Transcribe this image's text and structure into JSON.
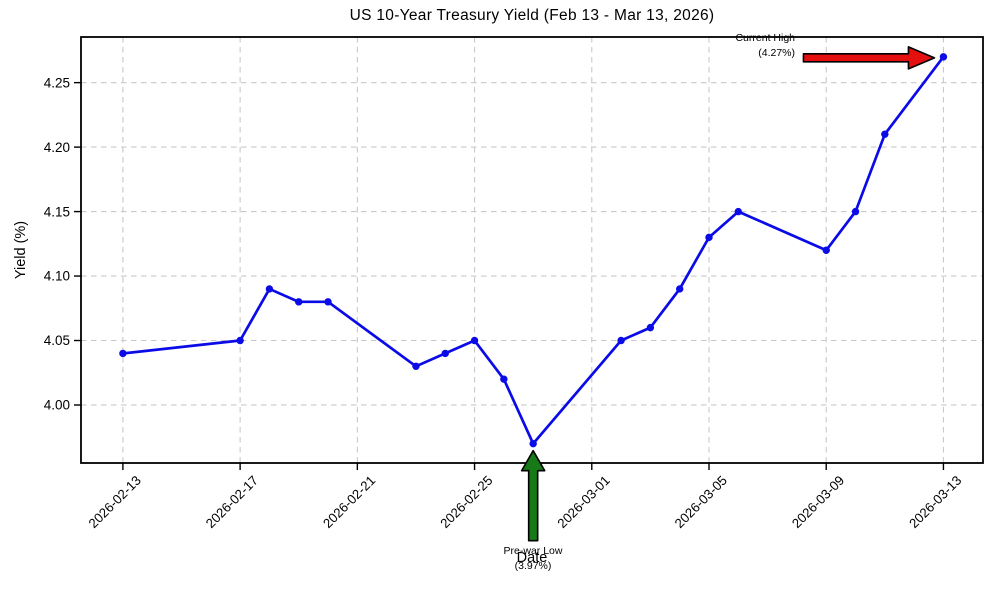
{
  "colors": {
    "line": "#0b0be8",
    "marker": "#0b0be8",
    "grid": "#c9c9c9",
    "spine": "#000000",
    "background": "#ffffff",
    "red_arrow": "#e41010",
    "green_arrow": "#177a17",
    "text": "#000000"
  },
  "chart_data": {
    "type": "line",
    "title": "US 10-Year Treasury Yield (Feb 13 - Mar 13, 2026)",
    "xlabel": "Date",
    "ylabel": "Yield (%)",
    "grid": "on",
    "legend": "none",
    "xlim_days": [
      -1.43,
      29.35
    ],
    "ylim": [
      3.955,
      4.2854
    ],
    "series": [
      {
        "name": "US 10-Year Treasury Yield",
        "color": "#0b0be8",
        "points": [
          {
            "date": "2026-02-13",
            "day": 0,
            "value": 4.04
          },
          {
            "date": "2026-02-17",
            "day": 4,
            "value": 4.05
          },
          {
            "date": "2026-02-18",
            "day": 5,
            "value": 4.09
          },
          {
            "date": "2026-02-19",
            "day": 6,
            "value": 4.08
          },
          {
            "date": "2026-02-20",
            "day": 7,
            "value": 4.08
          },
          {
            "date": "2026-02-23",
            "day": 10,
            "value": 4.03
          },
          {
            "date": "2026-02-24",
            "day": 11,
            "value": 4.04
          },
          {
            "date": "2026-02-25",
            "day": 12,
            "value": 4.05
          },
          {
            "date": "2026-02-26",
            "day": 13,
            "value": 4.02
          },
          {
            "date": "2026-02-27",
            "day": 14,
            "value": 3.97
          },
          {
            "date": "2026-03-02",
            "day": 17,
            "value": 4.05
          },
          {
            "date": "2026-03-03",
            "day": 18,
            "value": 4.06
          },
          {
            "date": "2026-03-04",
            "day": 19,
            "value": 4.09
          },
          {
            "date": "2026-03-05",
            "day": 20,
            "value": 4.13
          },
          {
            "date": "2026-03-06",
            "day": 21,
            "value": 4.15
          },
          {
            "date": "2026-03-09",
            "day": 24,
            "value": 4.12
          },
          {
            "date": "2026-03-10",
            "day": 25,
            "value": 4.15
          },
          {
            "date": "2026-03-11",
            "day": 26,
            "value": 4.21
          },
          {
            "date": "2026-03-13",
            "day": 28,
            "value": 4.27
          }
        ]
      }
    ],
    "xticks": [
      {
        "label": "2026-02-13",
        "day": 0
      },
      {
        "label": "2026-02-17",
        "day": 4
      },
      {
        "label": "2026-02-21",
        "day": 8
      },
      {
        "label": "2026-02-25",
        "day": 12
      },
      {
        "label": "2026-03-01",
        "day": 16
      },
      {
        "label": "2026-03-05",
        "day": 20
      },
      {
        "label": "2026-03-09",
        "day": 24
      },
      {
        "label": "2026-03-13",
        "day": 28
      }
    ],
    "yticks": [
      {
        "label": "4.00",
        "value": 4.0
      },
      {
        "label": "4.05",
        "value": 4.05
      },
      {
        "label": "4.10",
        "value": 4.1
      },
      {
        "label": "4.15",
        "value": 4.15
      },
      {
        "label": "4.20",
        "value": 4.2
      },
      {
        "label": "4.25",
        "value": 4.25
      }
    ],
    "annotations": [
      {
        "id": "current-high",
        "lines": [
          "Current High",
          "(4.27%)"
        ],
        "target_date": "2026-03-13",
        "target_day": 28,
        "target_value": 4.27,
        "arrow_direction": "right",
        "arrow_color": "#e41010"
      },
      {
        "id": "pre-war-low",
        "lines": [
          "Pre-war Low",
          "(3.97%)"
        ],
        "target_date": "2026-02-27",
        "target_day": 14,
        "target_value": 3.97,
        "arrow_direction": "up",
        "arrow_color": "#177a17"
      }
    ]
  }
}
